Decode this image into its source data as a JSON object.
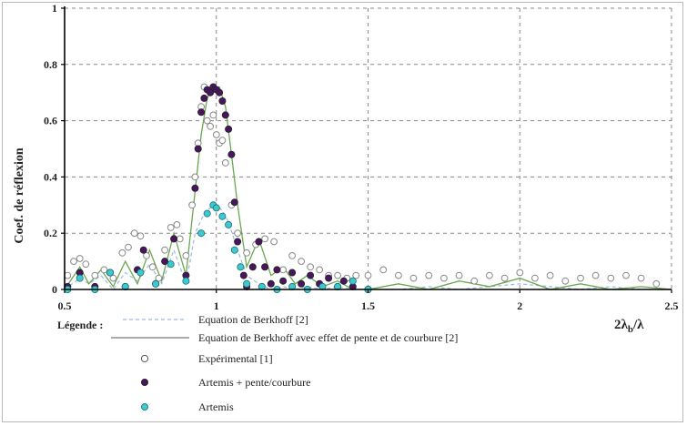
{
  "chart_data": {
    "type": "scatter",
    "title": "",
    "ylabel": "Coef. de réflexion",
    "xlabel": "2λb/λ",
    "xlim": [
      0.5,
      2.5
    ],
    "ylim": [
      0,
      1
    ],
    "x_ticks": [
      "0.5",
      "1",
      "1.5",
      "2",
      "2.5"
    ],
    "y_ticks": [
      "0",
      "0.2",
      "0.4",
      "0.6",
      "0.8",
      "1"
    ],
    "grid": true,
    "legend_position": "bottom",
    "legend": {
      "title": "Légende :",
      "entries": [
        "Equation de Berkhoff [2]",
        "Equation de Berkhoff avec effet de pente et de courbure [2]",
        "Expérimental [1]",
        "Artemis + pente/courbure",
        "Artemis"
      ]
    },
    "series": [
      {
        "name": "Equation de Berkhoff [2]",
        "style": "dashed-line",
        "color": "#9fb8e0",
        "x": [
          0.5,
          0.55,
          0.58,
          0.62,
          0.66,
          0.7,
          0.74,
          0.78,
          0.82,
          0.86,
          0.9,
          0.93,
          0.96,
          0.98,
          1.0,
          1.02,
          1.04,
          1.07,
          1.1,
          1.14,
          1.18,
          1.22,
          1.26,
          1.3,
          1.35,
          1.4,
          1.45,
          1.5,
          1.6,
          1.7,
          1.8,
          1.9,
          2.0,
          2.1,
          2.2,
          2.3,
          2.4,
          2.5
        ],
        "values": [
          0.0,
          0.04,
          0.02,
          0.05,
          0.0,
          0.06,
          0.03,
          0.09,
          0.02,
          0.14,
          0.02,
          0.2,
          0.27,
          0.29,
          0.3,
          0.28,
          0.24,
          0.14,
          0.05,
          0.02,
          0.0,
          0.01,
          0.0,
          0.01,
          0.0,
          0.01,
          0.0,
          0.0,
          0.0,
          0.01,
          0.0,
          0.01,
          0.02,
          0.01,
          0.0,
          0.01,
          0.0,
          0.0
        ]
      },
      {
        "name": "Equation de Berkhoff avec effet de pente et de courbure [2]",
        "style": "line",
        "color": "#6aa84f",
        "x": [
          0.5,
          0.55,
          0.58,
          0.62,
          0.66,
          0.7,
          0.74,
          0.78,
          0.82,
          0.86,
          0.9,
          0.93,
          0.95,
          0.97,
          0.99,
          1.01,
          1.03,
          1.05,
          1.07,
          1.1,
          1.14,
          1.18,
          1.22,
          1.26,
          1.3,
          1.35,
          1.4,
          1.45,
          1.5,
          1.6,
          1.7,
          1.8,
          1.9,
          2.0,
          2.1,
          2.2,
          2.3,
          2.4,
          2.5
        ],
        "values": [
          0.0,
          0.08,
          0.02,
          0.07,
          0.01,
          0.1,
          0.02,
          0.14,
          0.03,
          0.2,
          0.05,
          0.35,
          0.55,
          0.68,
          0.72,
          0.72,
          0.65,
          0.48,
          0.3,
          0.08,
          0.18,
          0.05,
          0.08,
          0.02,
          0.05,
          0.01,
          0.03,
          0.0,
          0.0,
          0.02,
          0.0,
          0.03,
          0.01,
          0.04,
          0.0,
          0.02,
          0.0,
          0.01,
          0.0
        ]
      },
      {
        "name": "Expérimental [1]",
        "style": "open-circle",
        "color": "#888888",
        "x": [
          0.51,
          0.53,
          0.55,
          0.57,
          0.6,
          0.63,
          0.66,
          0.69,
          0.71,
          0.73,
          0.75,
          0.77,
          0.79,
          0.81,
          0.83,
          0.85,
          0.87,
          0.88,
          0.9,
          0.92,
          0.93,
          0.94,
          0.95,
          0.96,
          0.97,
          0.98,
          0.99,
          1.0,
          1.01,
          1.02,
          1.03,
          1.05,
          1.07,
          1.1,
          1.13,
          1.16,
          1.19,
          1.22,
          1.25,
          1.28,
          1.31,
          1.34,
          1.37,
          1.4,
          1.43,
          1.46,
          1.5,
          1.55,
          1.6,
          1.65,
          1.7,
          1.75,
          1.8,
          1.85,
          1.9,
          1.95,
          2.0,
          2.05,
          2.1,
          2.15,
          2.2,
          2.25,
          2.3,
          2.35,
          2.4,
          2.45
        ],
        "values": [
          0.05,
          0.1,
          0.11,
          0.09,
          0.05,
          0.07,
          0.04,
          0.13,
          0.15,
          0.2,
          0.19,
          0.12,
          0.08,
          0.04,
          0.14,
          0.22,
          0.23,
          0.18,
          0.12,
          0.3,
          0.4,
          0.52,
          0.65,
          0.72,
          0.6,
          0.58,
          0.62,
          0.55,
          0.52,
          0.53,
          0.45,
          0.3,
          0.2,
          0.13,
          0.16,
          0.18,
          0.17,
          0.07,
          0.12,
          0.1,
          0.08,
          0.07,
          0.05,
          0.05,
          0.04,
          0.05,
          0.05,
          0.07,
          0.05,
          0.04,
          0.05,
          0.04,
          0.05,
          0.03,
          0.05,
          0.04,
          0.06,
          0.04,
          0.05,
          0.03,
          0.04,
          0.05,
          0.04,
          0.05,
          0.04,
          0.02
        ]
      },
      {
        "name": "Artemis + pente/courbure",
        "style": "filled-circle",
        "color": "#4a1560",
        "x": [
          0.51,
          0.55,
          0.6,
          0.65,
          0.7,
          0.74,
          0.76,
          0.8,
          0.83,
          0.86,
          0.9,
          0.93,
          0.94,
          0.95,
          0.96,
          0.97,
          0.98,
          0.99,
          1.0,
          1.01,
          1.02,
          1.03,
          1.04,
          1.05,
          1.06,
          1.07,
          1.09,
          1.1,
          1.12,
          1.14,
          1.16,
          1.18,
          1.2,
          1.22,
          1.25,
          1.28,
          1.31,
          1.34,
          1.37,
          1.4,
          1.42,
          1.45,
          1.5
        ],
        "values": [
          0.01,
          0.06,
          0.01,
          0.06,
          0.01,
          0.07,
          0.14,
          0.02,
          0.1,
          0.18,
          0.05,
          0.36,
          0.5,
          0.63,
          0.68,
          0.71,
          0.7,
          0.72,
          0.71,
          0.7,
          0.67,
          0.62,
          0.57,
          0.48,
          0.31,
          0.17,
          0.05,
          0.01,
          0.08,
          0.17,
          0.08,
          0.02,
          0.07,
          0.03,
          0.06,
          0.02,
          0.05,
          0.02,
          0.04,
          0.01,
          0.03,
          0.01,
          0.0
        ]
      },
      {
        "name": "Artemis",
        "style": "cyan-circle",
        "color": "#3ec8cf",
        "x": [
          0.51,
          0.55,
          0.6,
          0.65,
          0.7,
          0.75,
          0.8,
          0.85,
          0.9,
          0.95,
          0.97,
          0.99,
          1.0,
          1.02,
          1.04,
          1.06,
          1.08,
          1.1,
          1.15,
          1.2,
          1.25,
          1.3,
          1.35,
          1.4,
          1.45,
          1.5
        ],
        "values": [
          0.0,
          0.04,
          0.0,
          0.06,
          0.01,
          0.06,
          0.02,
          0.09,
          0.03,
          0.2,
          0.27,
          0.3,
          0.29,
          0.26,
          0.23,
          0.14,
          0.08,
          0.02,
          0.01,
          0.0,
          0.01,
          0.0,
          0.01,
          0.01,
          0.03,
          0.0
        ]
      }
    ]
  }
}
